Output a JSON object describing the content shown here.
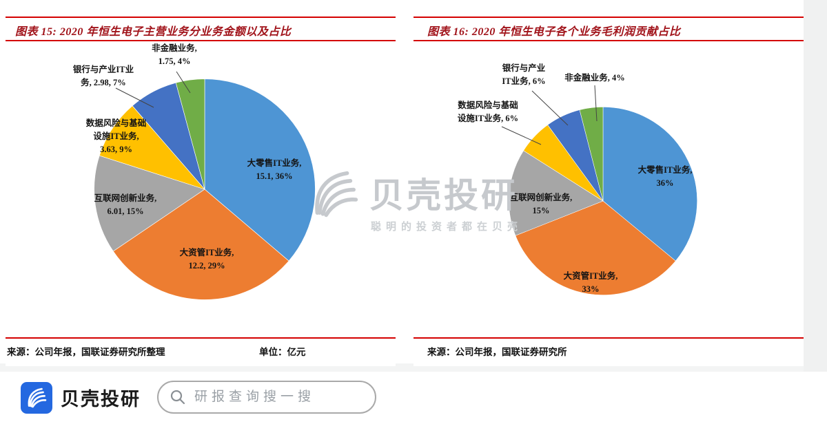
{
  "colors": {
    "slices": [
      "#4e95d4",
      "#ed7d31",
      "#a6a6a6",
      "#ffc000",
      "#4472c4",
      "#70ad47"
    ],
    "rule_red": "#d40000",
    "title_red": "#a1131a",
    "brand_blue": "#2468e0",
    "watermark_gray": "#c6c9cd"
  },
  "chart_data": [
    {
      "type": "pie",
      "title": "图表 15: 2020 年恒生电子主营业务分业务金额以及占比",
      "categories": [
        "大零售IT业务",
        "大资管IT业务",
        "互联网创新业务",
        "数据风险与基础设施IT业务",
        "银行与产业IT业务",
        "非金融业务"
      ],
      "values": [
        15.1,
        12.2,
        6.01,
        3.63,
        2.98,
        1.75
      ],
      "percents": [
        "36%",
        "29%",
        "15%",
        "9%",
        "7%",
        "4%"
      ],
      "unit_label": "单位：亿元",
      "source": "来源：公司年报，国联证券研究所整理",
      "labels": [
        "大零售IT业务,\n15.1, 36%",
        "大资管IT业务,\n12.2, 29%",
        "互联网创新业务,\n6.01, 15%",
        "数据风险与基础\n设施IT业务,\n3.63, 9%",
        "银行与产业IT业\n务, 2.98, 7%",
        "非金融业务,\n1.75, 4%"
      ]
    },
    {
      "type": "pie",
      "title": "图表 16: 2020 年恒生电子各个业务毛利润贡献占比",
      "categories": [
        "大零售IT业务",
        "大资管IT业务",
        "互联网创新业务",
        "数据风险与基础设施IT业务",
        "银行与产业IT业务",
        "非金融业务"
      ],
      "values": [
        36,
        33,
        15,
        6,
        6,
        4
      ],
      "percents": [
        "36%",
        "33%",
        "15%",
        "6%",
        "6%",
        "4%"
      ],
      "source": "来源：公司年报，国联证券研究所",
      "labels": [
        "大零售IT业务,\n36%",
        "大资管IT业务,\n33%",
        "互联网创新业务,\n15%",
        "数据风险与基础\n设施IT业务, 6%",
        "银行与产业\nIT业务, 6%",
        "非金融业务, 4%"
      ]
    }
  ],
  "watermark": {
    "brand": "贝壳投研",
    "slogan": "聪明的投资者都在贝壳"
  },
  "footer": {
    "brand": "贝壳投研",
    "search_placeholder": "研报查询搜一搜"
  }
}
